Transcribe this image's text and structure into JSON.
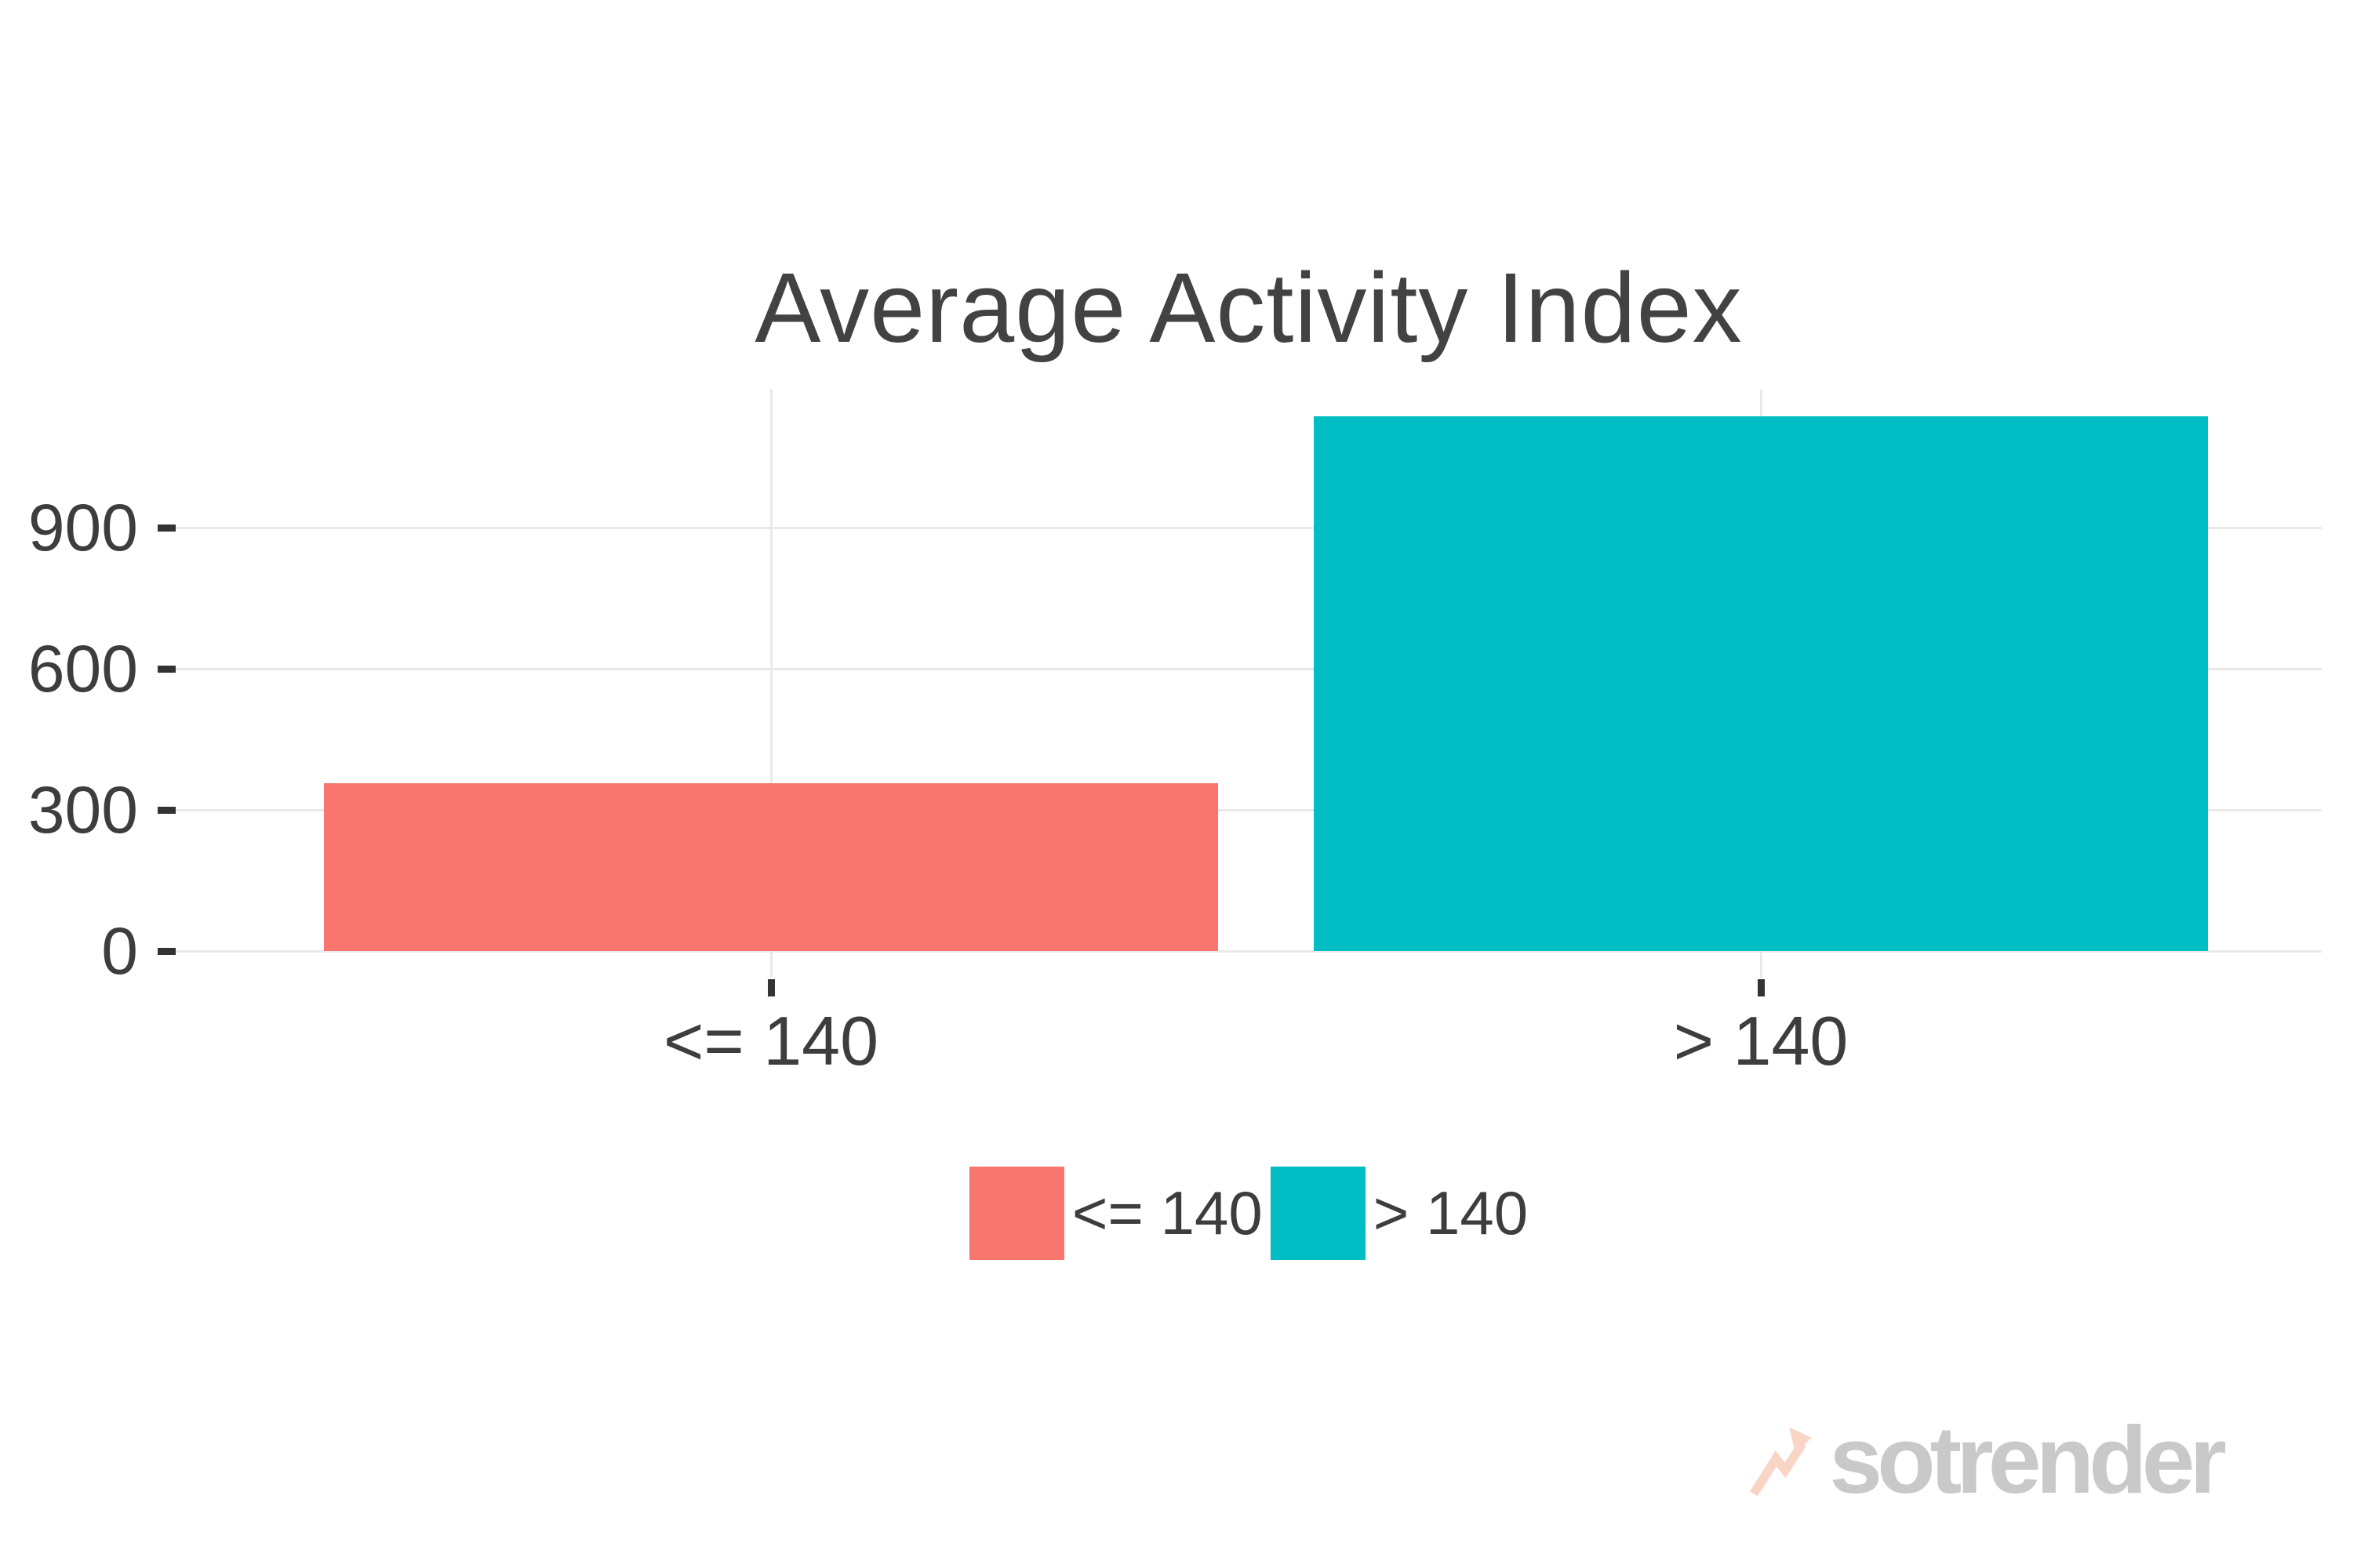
{
  "page": {
    "background": "#FFFFFF"
  },
  "chart_data": {
    "type": "bar",
    "title": "Average Activity Index",
    "categories": [
      "<= 140",
      "> 140"
    ],
    "values": [
      357,
      1137
    ],
    "bar_colors": [
      "#F8766D",
      "#00BEC3"
    ],
    "xlabel": "",
    "ylabel": "",
    "ylim": [
      0,
      1200
    ],
    "yticks": [
      0,
      300,
      600,
      900
    ],
    "ytick_labels": [
      "0",
      "300",
      "600",
      "900"
    ],
    "grid": "major horizontal gridlines at y ticks and vertical gridlines at category centers, light gray, no axis lines",
    "legend_position": "bottom",
    "legend": [
      {
        "label": "<= 140",
        "color": "#F8766D"
      },
      {
        "label": "> 140",
        "color": "#00BEC3"
      }
    ]
  },
  "watermark": {
    "text": "sotrender",
    "icon": "trend-arrow-icon",
    "text_color": "#C9C9C9",
    "icon_color": "#F9D5C6"
  },
  "colors": {
    "title_text": "#424242",
    "axis_text": "#3D3D3D",
    "gridline": "#E9E9E9",
    "tick_mark": "#333333"
  }
}
